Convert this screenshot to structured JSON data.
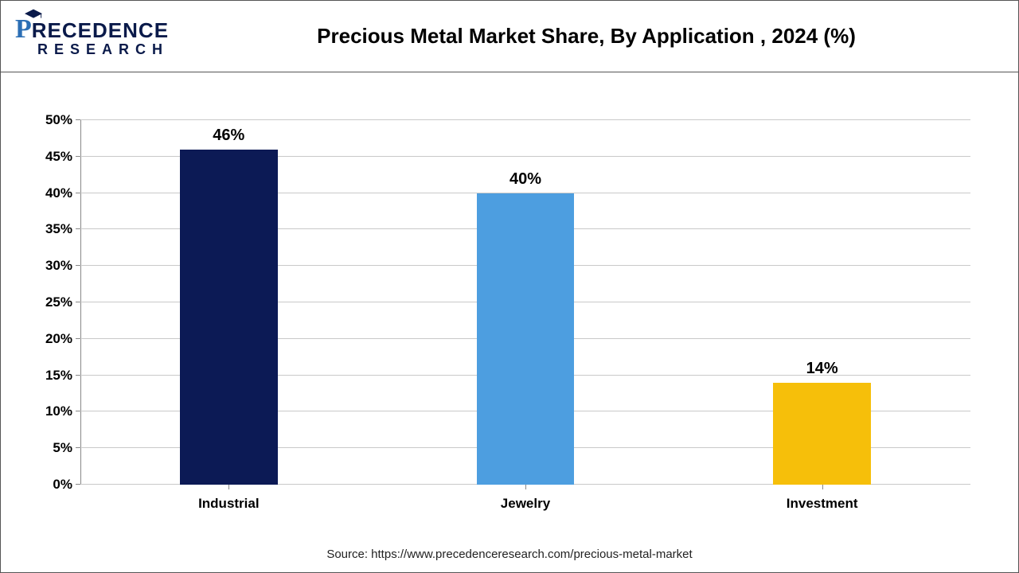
{
  "header": {
    "logo_p": "P",
    "logo_rest": "RECEDENCE",
    "logo_sub": "RESEARCH",
    "title": "Precious Metal Market Share, By Application , 2024 (%)"
  },
  "chart": {
    "type": "bar",
    "categories": [
      "Industrial",
      "Jewelry",
      "Investment"
    ],
    "values": [
      46,
      40,
      14
    ],
    "value_labels": [
      "46%",
      "40%",
      "14%"
    ],
    "bar_colors": [
      "#0c1a55",
      "#4d9ee0",
      "#f6bf0a"
    ],
    "ylim": [
      0,
      50
    ],
    "ytick_step": 5,
    "ytick_labels": [
      "0%",
      "5%",
      "10%",
      "15%",
      "20%",
      "25%",
      "30%",
      "35%",
      "40%",
      "45%",
      "50%"
    ],
    "grid_color": "#c9c9c9",
    "axis_color": "#888888",
    "background_color": "#ffffff",
    "bar_width_pct": 11,
    "label_fontsize": 17,
    "value_fontsize": 20,
    "title_fontsize": 26
  },
  "footer": {
    "source": "Source: https://www.precedenceresearch.com/precious-metal-market"
  }
}
